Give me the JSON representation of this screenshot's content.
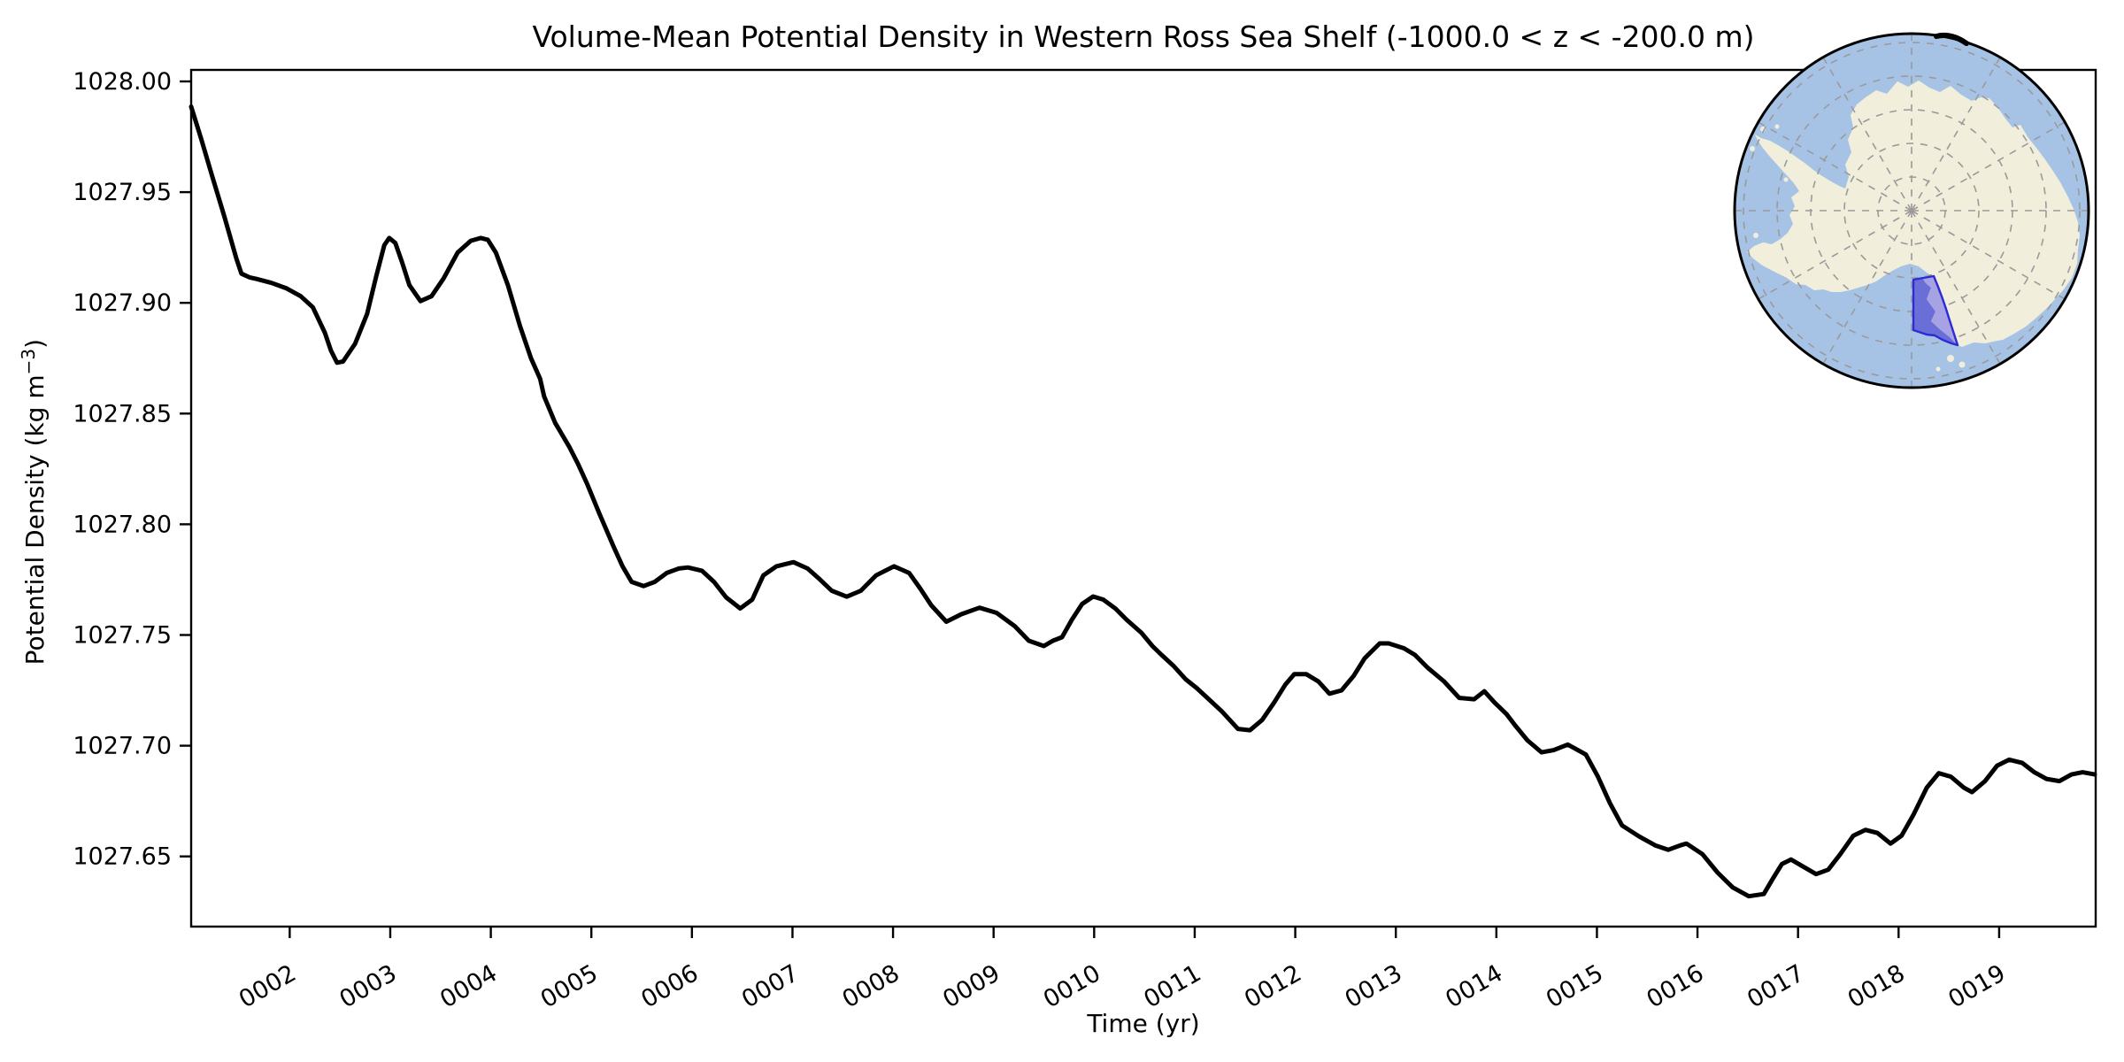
{
  "figure": {
    "background": "#ffffff"
  },
  "chart_data": {
    "type": "line",
    "title": "Volume-Mean Potential Density in Western Ross Sea Shelf (-1000.0 < z < -200.0 m)",
    "xlabel": "Time (yr)",
    "ylabel": "Potential Density (kg m^-3)",
    "ylabel_parts": {
      "prefix": "Potential Density (kg m",
      "exponent": "−3",
      "suffix": ")"
    },
    "xlim": [
      1.02,
      19.96
    ],
    "ylim": [
      1027.618,
      1028.005
    ],
    "grid": false,
    "legend_position": "none",
    "line_color": "#000000",
    "line_width": 5,
    "xtick_years": [
      2,
      3,
      4,
      5,
      6,
      7,
      8,
      9,
      10,
      11,
      12,
      13,
      14,
      15,
      16,
      17,
      18,
      19
    ],
    "xtick_labels": [
      "0002",
      "0003",
      "0004",
      "0005",
      "0006",
      "0007",
      "0008",
      "0009",
      "0010",
      "0011",
      "0012",
      "0013",
      "0014",
      "0015",
      "0016",
      "0017",
      "0018",
      "0019"
    ],
    "yticks": [
      1027.65,
      1027.7,
      1027.75,
      1027.8,
      1027.85,
      1027.9,
      1027.95,
      1028.0
    ],
    "series": [
      {
        "name": "volume-mean potential density",
        "x": [
          1.02,
          1.12,
          1.23,
          1.35,
          1.47,
          1.52,
          1.6,
          1.67,
          1.82,
          1.97,
          2.11,
          2.23,
          2.35,
          2.41,
          2.47,
          2.53,
          2.65,
          2.77,
          2.86,
          2.94,
          2.99,
          3.05,
          3.12,
          3.19,
          3.3,
          3.41,
          3.53,
          3.67,
          3.8,
          3.9,
          3.97,
          4.05,
          4.17,
          4.29,
          4.4,
          4.49,
          4.53,
          4.64,
          4.78,
          4.87,
          4.96,
          5.08,
          5.22,
          5.31,
          5.4,
          5.52,
          5.63,
          5.75,
          5.87,
          5.96,
          6.1,
          6.22,
          6.34,
          6.48,
          6.6,
          6.71,
          6.84,
          7.01,
          7.15,
          7.27,
          7.39,
          7.54,
          7.68,
          7.83,
          8.01,
          8.16,
          8.27,
          8.38,
          8.53,
          8.68,
          8.86,
          9.03,
          9.21,
          9.35,
          9.5,
          9.59,
          9.68,
          9.78,
          9.88,
          9.99,
          10.09,
          10.21,
          10.32,
          10.47,
          10.58,
          10.67,
          10.79,
          10.91,
          11.02,
          11.14,
          11.27,
          11.43,
          11.55,
          11.67,
          11.79,
          11.9,
          11.99,
          12.11,
          12.23,
          12.34,
          12.46,
          12.58,
          12.69,
          12.84,
          12.93,
          13.08,
          13.19,
          13.31,
          13.48,
          13.63,
          13.78,
          13.88,
          13.98,
          14.1,
          14.19,
          14.31,
          14.45,
          14.57,
          14.71,
          14.89,
          15.01,
          15.13,
          15.25,
          15.42,
          15.58,
          15.71,
          15.83,
          15.89,
          16.05,
          16.2,
          16.35,
          16.51,
          16.66,
          16.75,
          16.84,
          16.93,
          17.05,
          17.18,
          17.3,
          17.42,
          17.55,
          17.67,
          17.79,
          17.92,
          18.03,
          18.15,
          18.28,
          18.4,
          18.52,
          18.65,
          18.73,
          18.86,
          18.98,
          19.1,
          19.23,
          19.35,
          19.47,
          19.6,
          19.72,
          19.83,
          19.95
        ],
        "y": [
          1027.9886,
          1027.974,
          1027.957,
          1027.939,
          1027.92,
          1027.9132,
          1027.9115,
          1027.9108,
          1027.909,
          1027.9065,
          1027.903,
          1027.898,
          1027.8865,
          1027.8785,
          1027.873,
          1027.8735,
          1027.8815,
          1027.895,
          1027.912,
          1027.926,
          1027.9293,
          1027.927,
          1027.918,
          1027.908,
          1027.9008,
          1027.903,
          1027.911,
          1027.9227,
          1027.928,
          1027.9293,
          1027.9285,
          1027.9227,
          1027.908,
          1027.8896,
          1027.875,
          1027.8657,
          1027.8578,
          1027.8458,
          1027.835,
          1027.827,
          1027.818,
          1027.8048,
          1027.79,
          1027.781,
          1027.774,
          1027.7721,
          1027.774,
          1027.778,
          1027.78,
          1027.7805,
          1027.779,
          1027.774,
          1027.767,
          1027.762,
          1027.766,
          1027.7769,
          1027.781,
          1027.7829,
          1027.78,
          1027.7752,
          1027.77,
          1027.7673,
          1027.77,
          1027.7769,
          1027.781,
          1027.778,
          1027.771,
          1027.7634,
          1027.756,
          1027.7594,
          1027.7623,
          1027.76,
          1027.754,
          1027.7474,
          1027.745,
          1027.7474,
          1027.749,
          1027.757,
          1027.764,
          1027.7674,
          1027.766,
          1027.762,
          1027.757,
          1027.751,
          1027.745,
          1027.741,
          1027.736,
          1027.73,
          1027.726,
          1027.721,
          1027.7155,
          1027.7076,
          1027.707,
          1027.7116,
          1027.7195,
          1027.7275,
          1027.7323,
          1027.7323,
          1027.729,
          1027.7235,
          1027.725,
          1027.7315,
          1027.7395,
          1027.7462,
          1027.7462,
          1027.744,
          1027.741,
          1027.7355,
          1027.729,
          1027.7216,
          1027.721,
          1027.7246,
          1027.7196,
          1027.7143,
          1027.709,
          1027.7024,
          1027.697,
          1027.698,
          1027.7005,
          1027.696,
          1027.686,
          1027.674,
          1027.664,
          1027.659,
          1027.655,
          1027.653,
          1027.655,
          1027.6558,
          1027.651,
          1027.6427,
          1027.636,
          1027.632,
          1027.633,
          1027.64,
          1027.6466,
          1027.6486,
          1027.6454,
          1027.642,
          1027.644,
          1027.651,
          1027.6594,
          1027.662,
          1027.6606,
          1027.6558,
          1027.6594,
          1027.669,
          1027.681,
          1027.6876,
          1027.686,
          1027.681,
          1027.679,
          1027.684,
          1027.691,
          1027.6937,
          1027.6922,
          1027.688,
          1027.685,
          1027.684,
          1027.687,
          1027.688,
          1027.687
        ]
      }
    ]
  },
  "inset_map": {
    "name": "antarctica-locator-map",
    "projection": "south-polar-stereographic",
    "highlighted_region": "Western Ross Sea Shelf",
    "colors": {
      "ocean": "#a6c3e6",
      "land": "#f1eedb",
      "highlight_ocean": "#6a6fd8",
      "highlight_land": "#a7a2e3",
      "highlight_edge": "#2d2bd5",
      "graticule": "#9a9a9a",
      "outline": "#000000"
    }
  }
}
